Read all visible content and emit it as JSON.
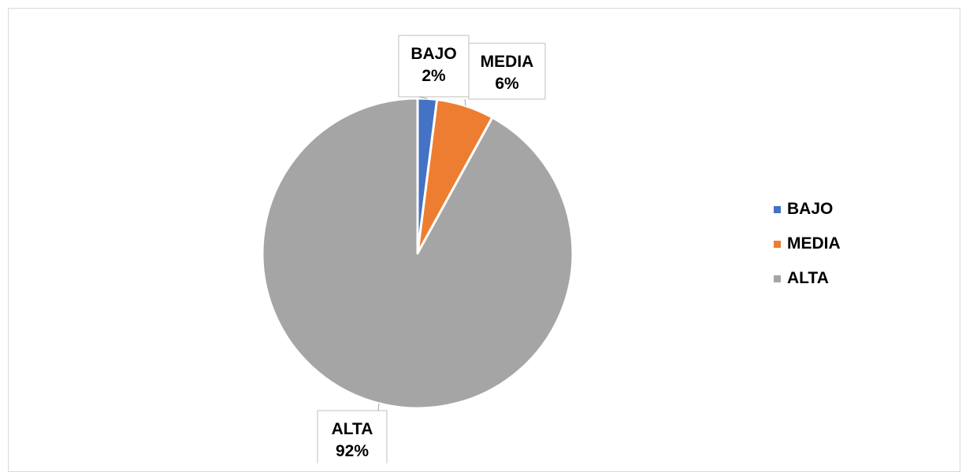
{
  "chart_data": {
    "type": "pie",
    "categories": [
      "BAJO",
      "MEDIA",
      "ALTA"
    ],
    "values": [
      2,
      6,
      92
    ],
    "value_labels": [
      "2%",
      "6%",
      "92%"
    ],
    "colors": [
      "#4472C4",
      "#ED7D31",
      "#A5A5A5"
    ],
    "legend": {
      "position": "right",
      "items": [
        {
          "label": "BAJO",
          "color": "#4472C4"
        },
        {
          "label": "MEDIA",
          "color": "#ED7D31"
        },
        {
          "label": "ALTA",
          "color": "#A5A5A5"
        }
      ]
    },
    "title": ""
  }
}
